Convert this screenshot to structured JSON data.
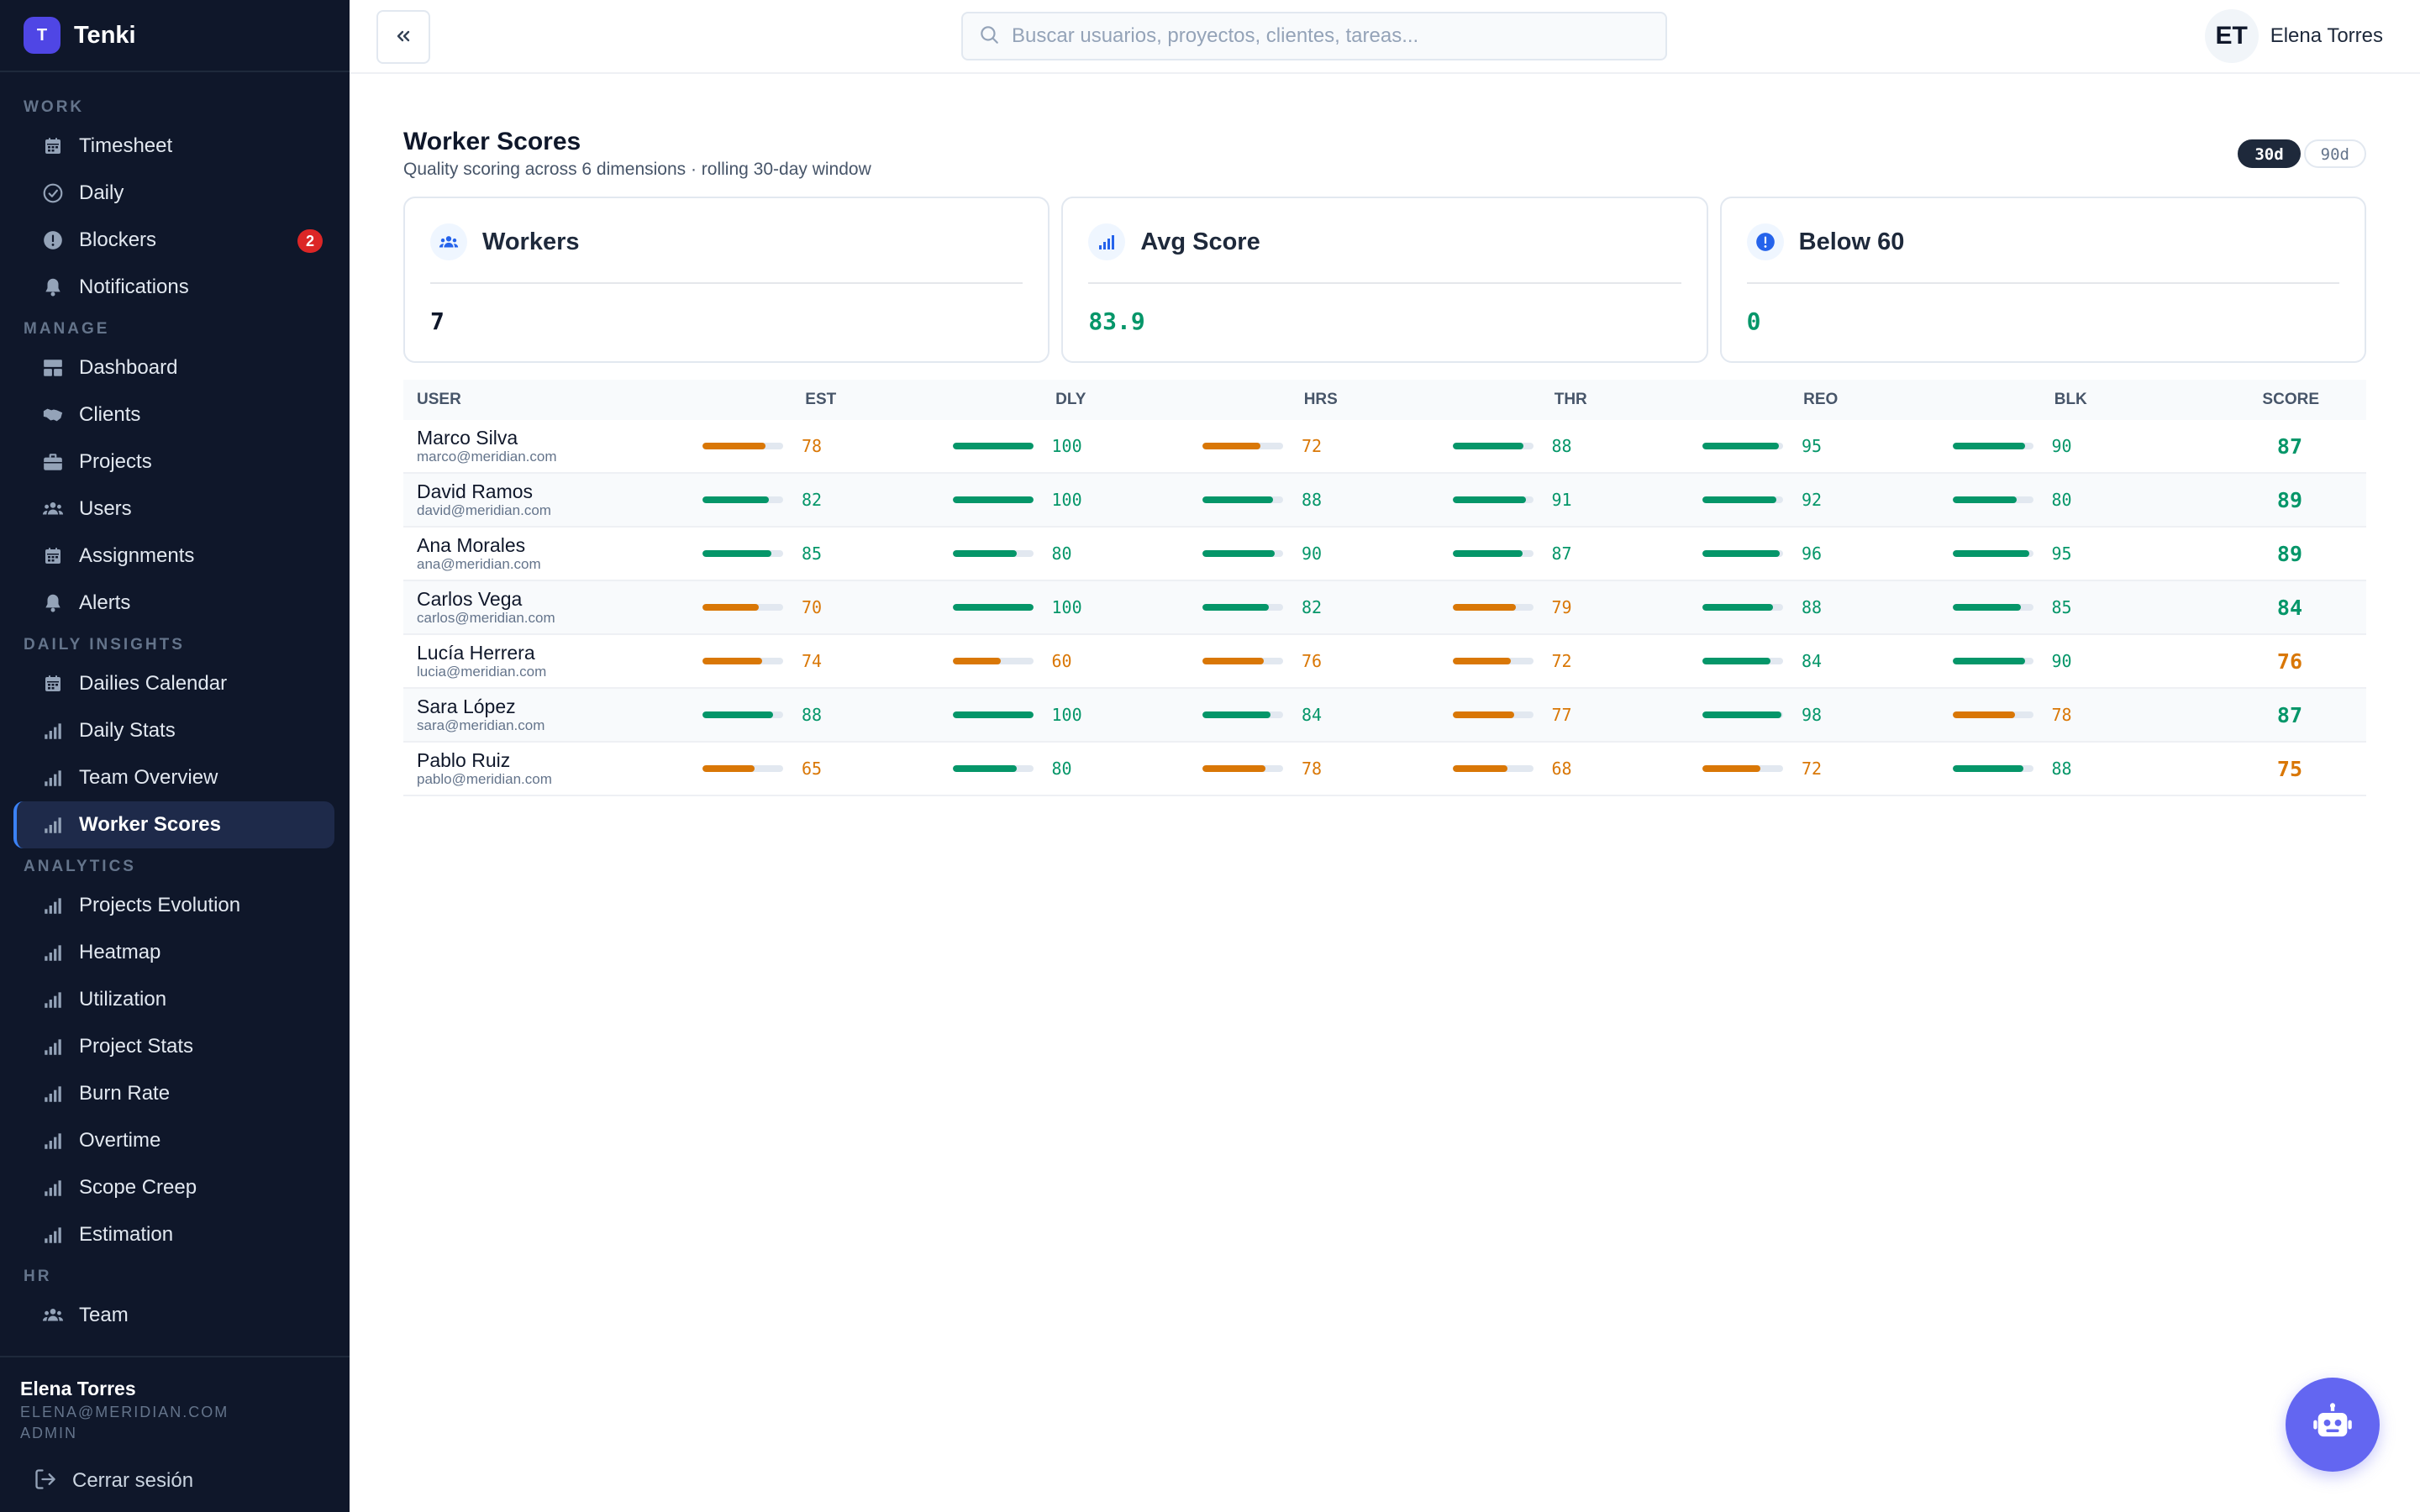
{
  "app": {
    "name": "Tenki",
    "logo_letter": "T"
  },
  "colors": {
    "good": "#059669",
    "warn": "#d97706",
    "accent": "#6366f1",
    "danger": "#dc2626"
  },
  "sidebar": {
    "sections": [
      {
        "title": "WORK",
        "items": [
          {
            "label": "Timesheet",
            "icon": "calendar-icon"
          },
          {
            "label": "Daily",
            "icon": "check-circle-icon"
          },
          {
            "label": "Blockers",
            "icon": "alert-circle-icon",
            "badge": "2"
          },
          {
            "label": "Notifications",
            "icon": "bell-icon"
          }
        ]
      },
      {
        "title": "MANAGE",
        "items": [
          {
            "label": "Dashboard",
            "icon": "grid-icon"
          },
          {
            "label": "Clients",
            "icon": "handshake-icon"
          },
          {
            "label": "Projects",
            "icon": "briefcase-icon"
          },
          {
            "label": "Users",
            "icon": "users-icon"
          },
          {
            "label": "Assignments",
            "icon": "calendar-icon"
          },
          {
            "label": "Alerts",
            "icon": "bell-icon"
          }
        ]
      },
      {
        "title": "DAILY INSIGHTS",
        "items": [
          {
            "label": "Dailies Calendar",
            "icon": "calendar-icon"
          },
          {
            "label": "Daily Stats",
            "icon": "bar-chart-icon"
          },
          {
            "label": "Team Overview",
            "icon": "bar-chart-icon"
          },
          {
            "label": "Worker Scores",
            "icon": "bar-chart-icon",
            "active": true
          }
        ]
      },
      {
        "title": "ANALYTICS",
        "items": [
          {
            "label": "Projects Evolution",
            "icon": "bar-chart-icon"
          },
          {
            "label": "Heatmap",
            "icon": "bar-chart-icon"
          },
          {
            "label": "Utilization",
            "icon": "bar-chart-icon"
          },
          {
            "label": "Project Stats",
            "icon": "bar-chart-icon"
          },
          {
            "label": "Burn Rate",
            "icon": "bar-chart-icon"
          },
          {
            "label": "Overtime",
            "icon": "bar-chart-icon"
          },
          {
            "label": "Scope Creep",
            "icon": "bar-chart-icon"
          },
          {
            "label": "Estimation",
            "icon": "bar-chart-icon"
          }
        ]
      },
      {
        "title": "HR",
        "items": [
          {
            "label": "Team",
            "icon": "users-icon"
          }
        ]
      }
    ],
    "footer": {
      "name": "Elena Torres",
      "email": "ELENA@MERIDIAN.COM",
      "role": "ADMIN",
      "logout_label": "Cerrar sesión"
    }
  },
  "topbar": {
    "search_placeholder": "Buscar usuarios, proyectos, clientes, tareas...",
    "user_initials": "ET",
    "user_name": "Elena Torres"
  },
  "page": {
    "title": "Worker Scores",
    "subtitle": "Quality scoring across 6 dimensions · rolling 30-day window",
    "range_options": [
      {
        "label": "30d",
        "active": true
      },
      {
        "label": "90d",
        "active": false
      }
    ]
  },
  "cards": [
    {
      "label": "Workers",
      "value": "7",
      "icon": "users-icon",
      "tone": "neutral"
    },
    {
      "label": "Avg Score",
      "value": "83.9",
      "icon": "bar-chart-icon",
      "tone": "good"
    },
    {
      "label": "Below 60",
      "value": "0",
      "icon": "alert-circle-icon",
      "tone": "good"
    }
  ],
  "table": {
    "headers": {
      "user": "USER",
      "metrics": [
        "EST",
        "DLY",
        "HRS",
        "THR",
        "REO",
        "BLK"
      ],
      "score": "SCORE"
    },
    "rows": [
      {
        "name": "Marco Silva",
        "email": "marco@meridian.com",
        "metrics": [
          78,
          100,
          72,
          88,
          95,
          90
        ],
        "score": 87
      },
      {
        "name": "David Ramos",
        "email": "david@meridian.com",
        "metrics": [
          82,
          100,
          88,
          91,
          92,
          80
        ],
        "score": 89
      },
      {
        "name": "Ana Morales",
        "email": "ana@meridian.com",
        "metrics": [
          85,
          80,
          90,
          87,
          96,
          95
        ],
        "score": 89
      },
      {
        "name": "Carlos Vega",
        "email": "carlos@meridian.com",
        "metrics": [
          70,
          100,
          82,
          79,
          88,
          85
        ],
        "score": 84
      },
      {
        "name": "Lucía Herrera",
        "email": "lucia@meridian.com",
        "metrics": [
          74,
          60,
          76,
          72,
          84,
          90
        ],
        "score": 76
      },
      {
        "name": "Sara López",
        "email": "sara@meridian.com",
        "metrics": [
          88,
          100,
          84,
          77,
          98,
          78
        ],
        "score": 87
      },
      {
        "name": "Pablo Ruiz",
        "email": "pablo@meridian.com",
        "metrics": [
          65,
          80,
          78,
          68,
          72,
          88
        ],
        "score": 75
      }
    ]
  },
  "assistant": {
    "icon": "robot-icon"
  }
}
